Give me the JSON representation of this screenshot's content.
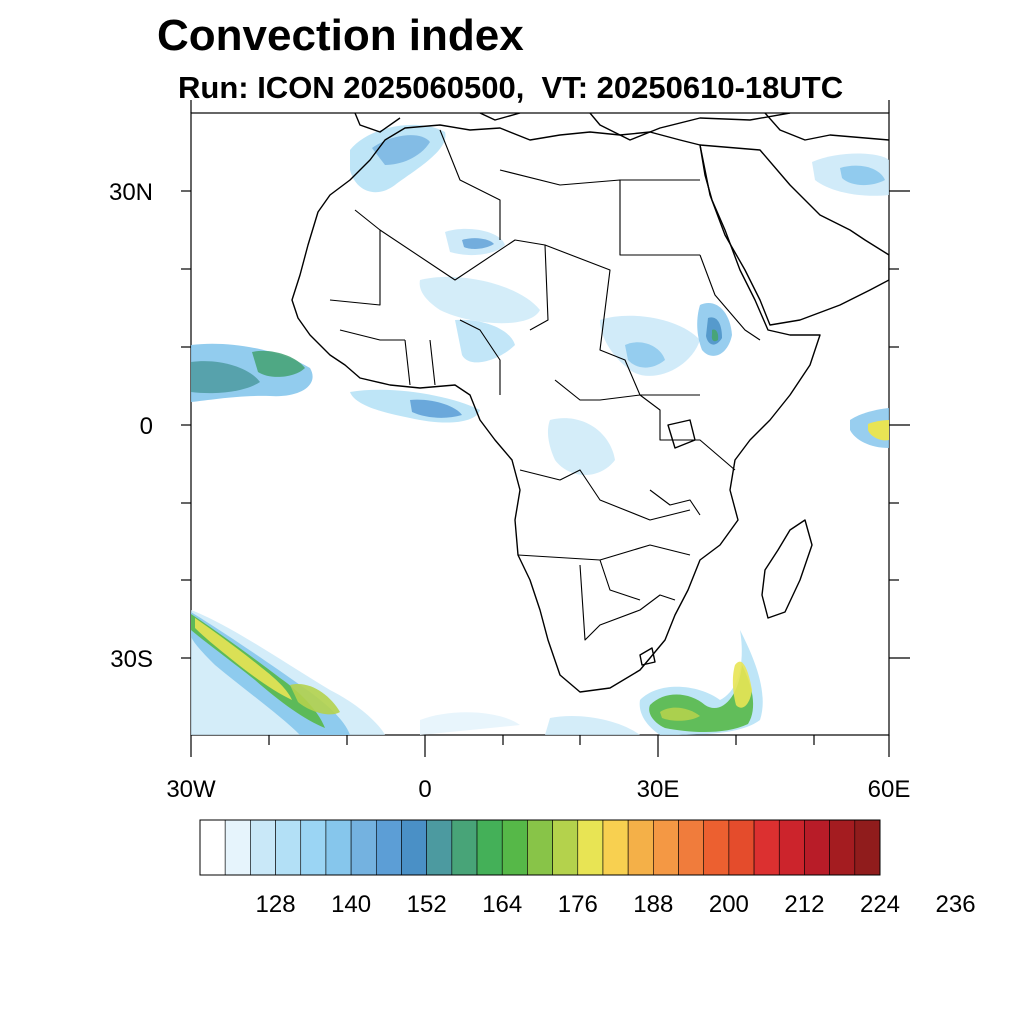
{
  "title": "Convection index",
  "subtitle": "Run: ICON 2025060500,  VT: 20250610-18UTC",
  "axes": {
    "lat_labels": [
      "30N",
      "0",
      "30S"
    ],
    "lon_labels": [
      "30W",
      "0",
      "30E",
      "60E"
    ]
  },
  "colorbar": {
    "colors": [
      "#ffffff",
      "#e6f4fc",
      "#c9e8f8",
      "#b3e0f6",
      "#9bd5f4",
      "#86c6ec",
      "#74b2e0",
      "#5c9ed6",
      "#4a90c6",
      "#4c9aa0",
      "#48a478",
      "#44b058",
      "#56b848",
      "#88c448",
      "#b4d24c",
      "#e8e454",
      "#f8d050",
      "#f4b048",
      "#f49844",
      "#f07c3c",
      "#ec6030",
      "#e44c2c",
      "#dc3030",
      "#cc242c",
      "#b81c28",
      "#a41c20",
      "#901c1c"
    ],
    "tick_labels": [
      "128",
      "140",
      "152",
      "164",
      "176",
      "188",
      "200",
      "212",
      "224",
      "236"
    ]
  }
}
